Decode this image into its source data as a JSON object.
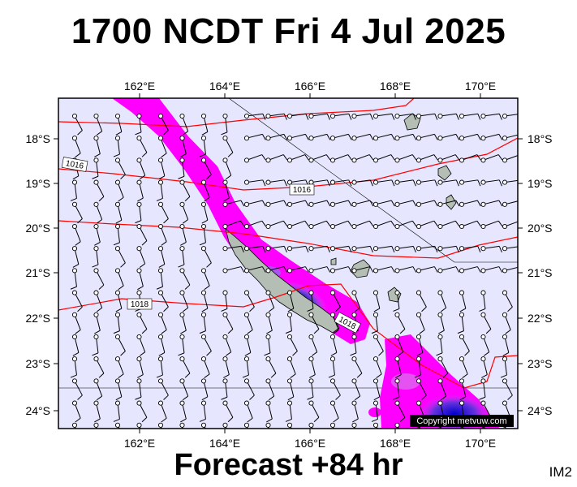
{
  "title": "1700 NCDT Fri 4 Jul 2025",
  "footer": "Forecast +84 hr",
  "image_tag": "IM2",
  "copyright": "Copyright metvuw.com",
  "map": {
    "lon_ticks": [
      "162°E",
      "164°E",
      "166°E",
      "168°E",
      "170°E"
    ],
    "lat_ticks": [
      "18°S",
      "19°S",
      "20°S",
      "21°S",
      "22°S",
      "23°S",
      "24°S"
    ],
    "isobar_labels": [
      "1016",
      "1016",
      "1018",
      "1018"
    ],
    "colors": {
      "background": "#e6e6ff",
      "isobar": "#ff0000",
      "precip_light": "#ff00ff",
      "precip_heavy": "#3333cc",
      "land": "#b4beb4"
    }
  }
}
